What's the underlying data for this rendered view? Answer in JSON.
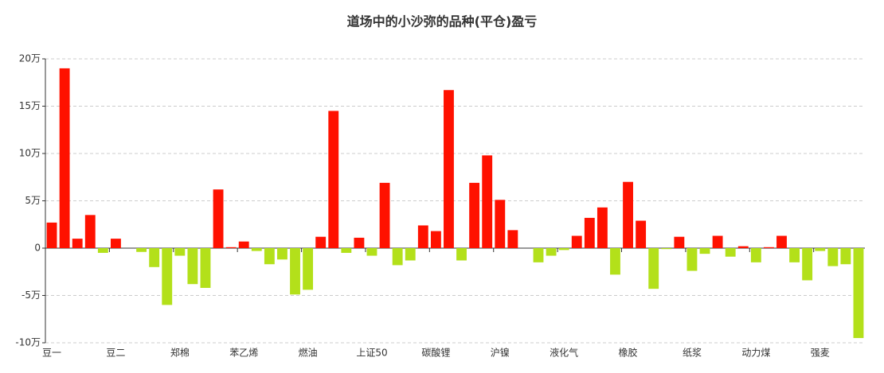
{
  "chart_data": {
    "type": "bar",
    "title": "道场中的小沙弥的品种(平仓)盈亏",
    "categories": [
      "豆一",
      null,
      null,
      null,
      null,
      "豆二",
      null,
      null,
      null,
      null,
      "郑棉",
      null,
      null,
      null,
      null,
      "苯乙烯",
      null,
      null,
      null,
      null,
      "燃油",
      null,
      null,
      null,
      null,
      "上证50",
      null,
      null,
      null,
      null,
      "碳酸锂",
      null,
      null,
      null,
      null,
      "沪镍",
      null,
      null,
      null,
      null,
      "液化气",
      null,
      null,
      null,
      null,
      "橡胶",
      null,
      null,
      null,
      null,
      "纸浆",
      null,
      null,
      null,
      null,
      "动力煤",
      null,
      null,
      null,
      null,
      "强麦",
      null,
      null,
      null
    ],
    "values": [
      2.7,
      19,
      1.0,
      3.5,
      -0.5,
      1.0,
      0,
      -0.4,
      -2.0,
      -6.0,
      -0.8,
      -3.8,
      -4.2,
      6.2,
      0.1,
      0.7,
      -0.3,
      -1.7,
      -1.2,
      -4.9,
      -4.4,
      1.2,
      14.5,
      -0.5,
      1.1,
      -0.8,
      6.9,
      -1.8,
      -1.3,
      2.4,
      1.8,
      16.7,
      -1.3,
      6.9,
      9.8,
      5.1,
      1.9,
      0,
      -1.5,
      -0.8,
      -0.2,
      1.3,
      3.2,
      4.3,
      -2.8,
      7.0,
      2.9,
      -4.3,
      -0.1,
      1.2,
      -2.4,
      -0.6,
      1.3,
      -0.9,
      0.2,
      -1.5,
      0.1,
      1.3,
      -1.5,
      -3.4,
      -0.3,
      -1.9,
      -1.7,
      -9.5
    ],
    "positive_color": "#ff1100",
    "negative_color": "#b3e01a",
    "ylim": [
      -10,
      20
    ],
    "yticks": [
      {
        "value": -10,
        "label": "-10万"
      },
      {
        "value": -5,
        "label": "-5万"
      },
      {
        "value": 0,
        "label": "0"
      },
      {
        "value": 5,
        "label": "5万"
      },
      {
        "value": 10,
        "label": "10万"
      },
      {
        "value": 15,
        "label": "15万"
      },
      {
        "value": 20,
        "label": "20万"
      }
    ],
    "grid": true
  }
}
